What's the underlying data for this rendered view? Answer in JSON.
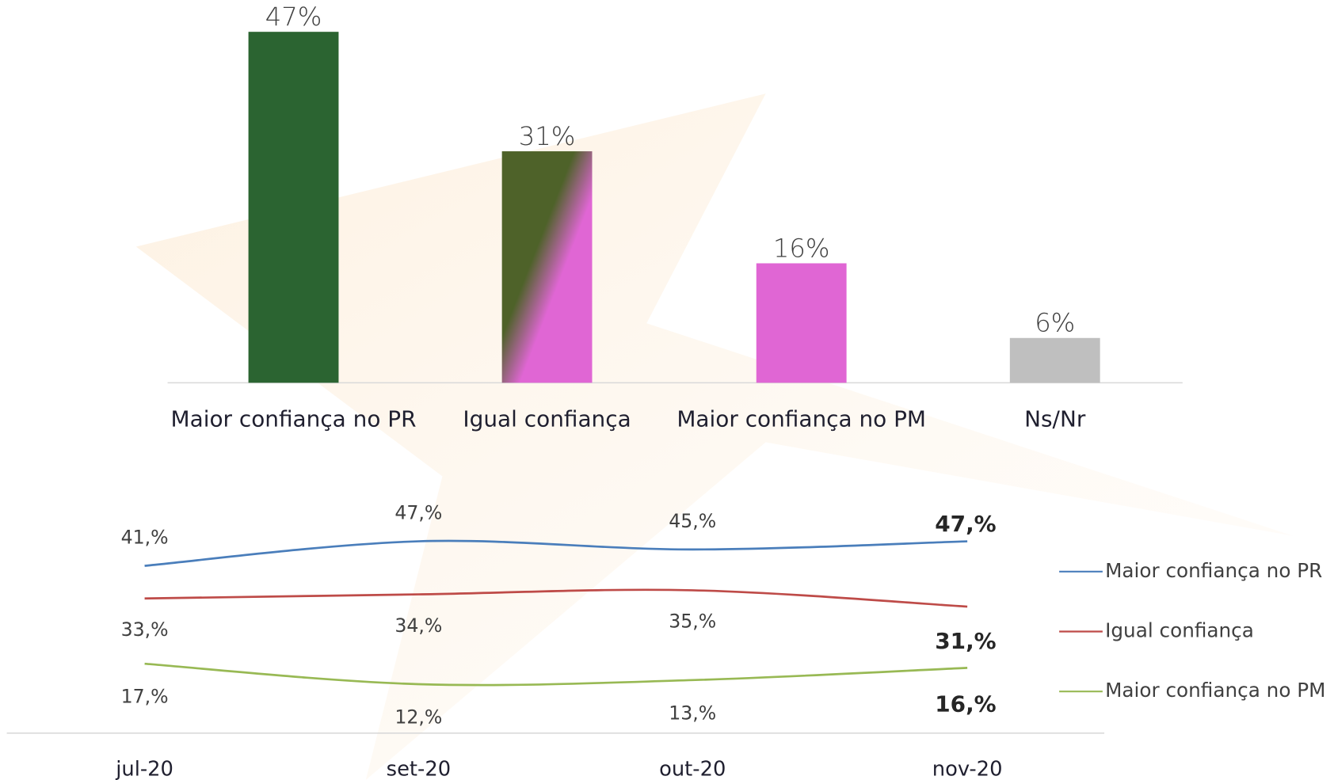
{
  "chart_data": [
    {
      "type": "bar",
      "categories": [
        "Maior confiança no PR",
        "Igual confiança",
        "Maior confiança no PM",
        "Ns/Nr"
      ],
      "values": [
        47,
        31,
        16,
        6
      ],
      "value_labels": [
        "47%",
        "31%",
        "16%",
        "6%"
      ],
      "colors": [
        "#2b6431",
        [
          "#4e6229",
          "#e066d4"
        ],
        "#e066d4",
        "#bfbfbf"
      ],
      "ylim": [
        0,
        50
      ]
    },
    {
      "type": "line",
      "categories": [
        "jul-20",
        "set-20",
        "out-20",
        "nov-20"
      ],
      "series": [
        {
          "name": "Maior confiança no PR",
          "color": "#4a7ebb",
          "values": [
            41,
            47,
            45,
            47
          ],
          "value_labels": [
            "41,%",
            "47,%",
            "45,%",
            "47,%"
          ]
        },
        {
          "name": "Igual confiança",
          "color": "#be4b48",
          "values": [
            33,
            34,
            35,
            31
          ],
          "value_labels": [
            "33,%",
            "34,%",
            "35,%",
            "31,%"
          ]
        },
        {
          "name": "Maior confiança no PM",
          "color": "#98b954",
          "values": [
            17,
            12,
            13,
            16
          ],
          "value_labels": [
            "17,%",
            "12,%",
            "13,%",
            "16,%"
          ]
        }
      ],
      "ylim": [
        0,
        50
      ],
      "legend": "right"
    }
  ]
}
